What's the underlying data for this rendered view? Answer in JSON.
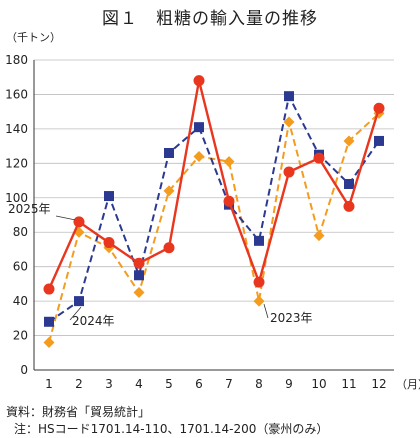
{
  "chart_data": {
    "type": "line",
    "title": "図１　粗糖の輸入量の推移",
    "ylabel": "（千トン）",
    "xunit": "（月）",
    "categories": [
      "1",
      "2",
      "3",
      "4",
      "5",
      "6",
      "7",
      "8",
      "9",
      "10",
      "11",
      "12"
    ],
    "ylim": [
      0,
      180
    ],
    "yticks": [
      0,
      20,
      40,
      60,
      80,
      100,
      120,
      140,
      160,
      180
    ],
    "grid": true,
    "series": [
      {
        "name": "2025年",
        "color": "#e8361f",
        "style": "solid",
        "marker": "circle",
        "values": [
          47,
          86,
          74,
          62,
          71,
          168,
          98,
          51,
          null,
          null,
          null,
          null
        ]
      },
      {
        "name": "2024年",
        "color": "#2b3990",
        "style": "dashed",
        "marker": "square",
        "values": [
          28,
          40,
          101,
          55,
          126,
          141,
          96,
          75,
          159,
          125,
          108,
          133
        ]
      },
      {
        "name": "2023年",
        "color": "#f39c1e",
        "style": "dashed",
        "marker": "diamond",
        "values": [
          16,
          80,
          71,
          45,
          104,
          124,
          121,
          40,
          144,
          78,
          133,
          149
        ]
      }
    ],
    "extra_2025_tail": {
      "note": "2025年 series continues through 12",
      "values": [
        115,
        123,
        95,
        152
      ]
    }
  },
  "notes": {
    "source": "資料：財務省「貿易統計」",
    "hs": "注：HSコード1701.14-110、1701.14-200（豪州のみ）"
  }
}
